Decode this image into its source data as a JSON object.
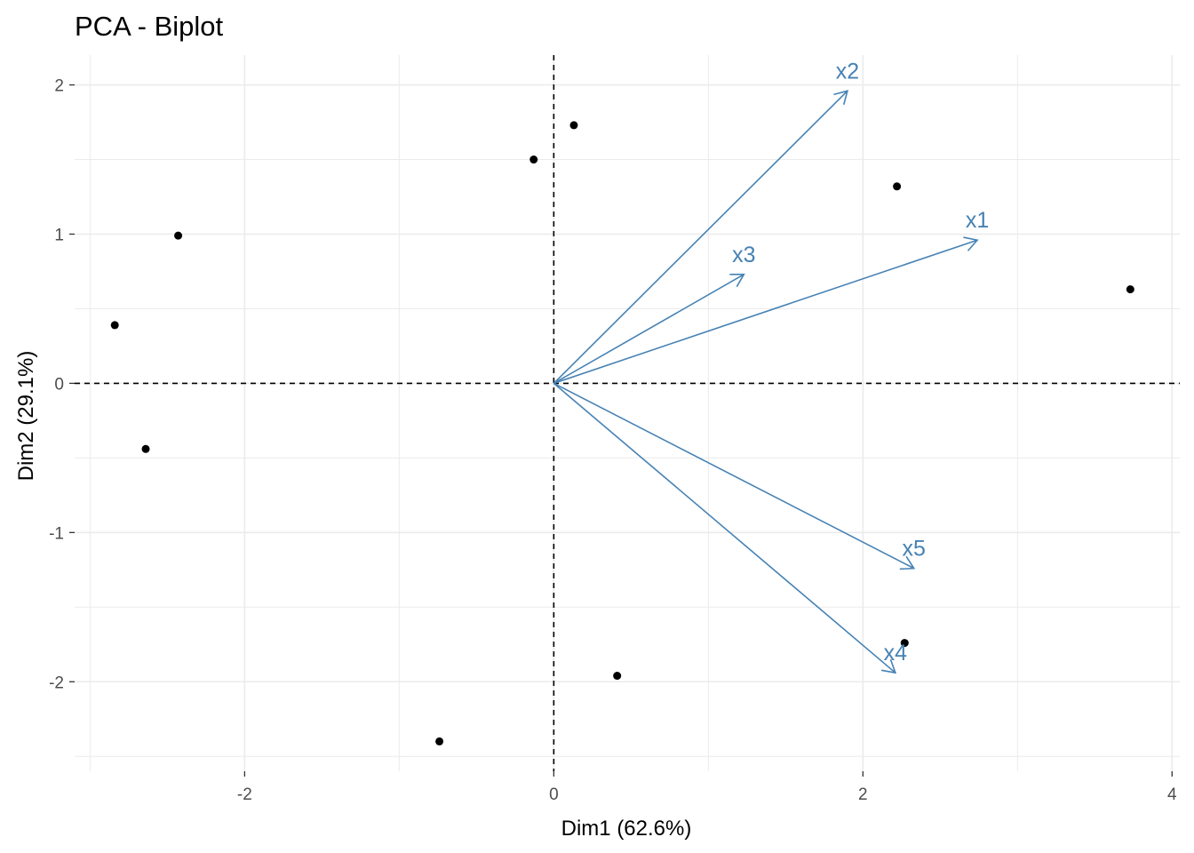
{
  "chart_data": {
    "type": "scatter",
    "title": "PCA - Biplot",
    "xlabel": "Dim1 (62.6%)",
    "ylabel": "Dim2 (29.1%)",
    "xlim": [
      -3.1,
      4.05
    ],
    "ylim": [
      -2.6,
      2.2
    ],
    "x_ticks": [
      -2,
      0,
      2,
      4
    ],
    "x_tick_labels": [
      "-2",
      "0",
      "2",
      "4"
    ],
    "y_ticks": [
      -2,
      -1,
      0,
      1,
      2
    ],
    "y_tick_labels": [
      "-2",
      "-1",
      "0",
      "1",
      "2"
    ],
    "grid": true,
    "reference_lines": {
      "x": 0,
      "y": 0,
      "style": "dashed"
    },
    "points": [
      {
        "x": -2.84,
        "y": 0.39
      },
      {
        "x": -2.43,
        "y": 0.99
      },
      {
        "x": -2.64,
        "y": -0.44
      },
      {
        "x": -0.74,
        "y": -2.4
      },
      {
        "x": -0.13,
        "y": 1.5
      },
      {
        "x": 0.13,
        "y": 1.73
      },
      {
        "x": 0.41,
        "y": -1.96
      },
      {
        "x": 2.22,
        "y": 1.32
      },
      {
        "x": 2.27,
        "y": -1.74
      },
      {
        "x": 3.73,
        "y": 0.63
      }
    ],
    "vectors": [
      {
        "name": "x1",
        "x": 2.74,
        "y": 0.96
      },
      {
        "name": "x2",
        "x": 1.9,
        "y": 1.96
      },
      {
        "name": "x3",
        "x": 1.23,
        "y": 0.73
      },
      {
        "name": "x4",
        "x": 2.21,
        "y": -1.94
      },
      {
        "name": "x5",
        "x": 2.33,
        "y": -1.24
      }
    ],
    "colors": {
      "points": "#000000",
      "vectors": "#4682b4",
      "grid": "#ebebeb",
      "reference": "#000000"
    }
  }
}
